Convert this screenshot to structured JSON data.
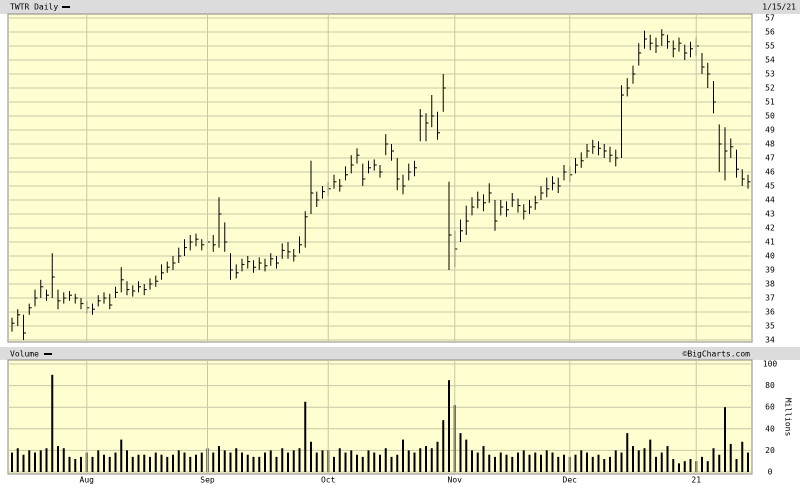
{
  "chart_data": [
    {
      "type": "ohlc",
      "title": "TWTR Daily",
      "date": "1/15/21",
      "color": "#000000",
      "grid": true,
      "ylim": [
        34,
        57
      ],
      "yticks": [
        34,
        35,
        36,
        37,
        38,
        39,
        40,
        41,
        42,
        43,
        44,
        45,
        46,
        47,
        48,
        49,
        50,
        51,
        52,
        53,
        54,
        55,
        56,
        57
      ],
      "high": [
        35.6,
        36.2,
        35.8,
        36.6,
        37.6,
        38.3,
        37.6,
        40.2,
        37.6,
        37.4,
        37.5,
        37.3,
        37.0,
        36.8,
        36.6,
        37.2,
        37.4,
        37.3,
        37.8,
        39.2,
        38.2,
        37.9,
        38.2,
        38.0,
        38.4,
        38.6,
        39.4,
        39.6,
        40.0,
        40.6,
        41.2,
        41.5,
        41.6,
        41.2,
        41.4,
        41.5,
        44.2,
        42.4,
        40.2,
        39.4,
        39.8,
        40.0,
        39.7,
        39.9,
        39.8,
        40.2,
        40.0,
        40.9,
        41.0,
        40.5,
        41.4,
        43.2,
        46.8,
        44.6,
        45.0,
        45.3,
        45.8,
        45.5,
        46.4,
        47.2,
        47.7,
        46.6,
        46.8,
        46.9,
        46.5,
        48.7,
        48.0,
        47.0,
        45.8,
        46.6,
        46.8,
        50.5,
        50.2,
        51.5,
        50.3,
        53.0,
        45.3,
        41.8,
        42.6,
        43.6,
        44.2,
        44.6,
        44.4,
        45.2,
        44.0,
        44.0,
        43.9,
        44.5,
        44.1,
        43.7,
        44.0,
        44.3,
        45.0,
        45.6,
        45.7,
        45.6,
        46.5,
        46.4,
        47.0,
        47.4,
        48.0,
        48.3,
        48.2,
        48.0,
        47.8,
        47.6,
        52.2,
        52.7,
        53.6,
        55.2,
        56.1,
        55.8,
        55.6,
        56.2,
        55.8,
        55.4,
        55.6,
        55.1,
        55.3,
        55.6,
        54.5,
        53.8,
        52.5,
        49.4,
        49.2,
        48.4,
        47.6,
        46.2,
        45.8
      ],
      "low": [
        34.6,
        35.0,
        34.0,
        35.8,
        36.4,
        37.0,
        36.8,
        37.0,
        36.2,
        36.6,
        36.8,
        36.6,
        36.2,
        35.9,
        35.8,
        36.4,
        36.6,
        36.2,
        37.0,
        37.4,
        37.2,
        37.1,
        37.4,
        37.2,
        37.6,
        37.8,
        38.3,
        38.8,
        39.0,
        39.5,
        40.0,
        40.4,
        40.7,
        40.4,
        40.5,
        40.3,
        40.6,
        40.3,
        38.3,
        38.4,
        38.9,
        39.1,
        38.8,
        39.0,
        38.9,
        39.3,
        39.1,
        39.8,
        39.8,
        39.6,
        40.2,
        40.6,
        43.0,
        43.5,
        44.1,
        44.3,
        44.8,
        44.6,
        45.4,
        45.9,
        46.6,
        45.0,
        45.9,
        46.1,
        45.6,
        47.2,
        46.8,
        44.7,
        44.4,
        45.4,
        45.7,
        48.2,
        48.2,
        49.2,
        48.3,
        50.3,
        39.0,
        39.2,
        41.0,
        41.5,
        42.9,
        43.4,
        43.2,
        43.8,
        41.8,
        42.9,
        42.8,
        43.5,
        43.1,
        42.6,
        43.0,
        43.3,
        44.0,
        44.2,
        44.7,
        44.5,
        45.4,
        45.3,
        45.9,
        46.3,
        47.0,
        47.3,
        47.2,
        47.0,
        46.7,
        46.4,
        47.0,
        51.4,
        52.3,
        53.6,
        54.8,
        54.7,
        54.5,
        55.0,
        54.8,
        54.2,
        54.6,
        54.0,
        54.2,
        54.3,
        53.0,
        52.0,
        50.2,
        46.0,
        45.4,
        47.0,
        45.6,
        45.0,
        44.8
      ],
      "close": [
        35.2,
        35.8,
        34.5,
        36.3,
        37.0,
        37.8,
        37.2,
        38.5,
        36.8,
        37.0,
        37.2,
        37.0,
        36.6,
        36.3,
        36.2,
        36.8,
        37.0,
        36.5,
        37.4,
        38.3,
        37.6,
        37.5,
        37.8,
        37.6,
        38.0,
        38.2,
        38.8,
        39.2,
        39.5,
        40.0,
        40.6,
        41.0,
        41.2,
        40.8,
        41.0,
        40.8,
        43.0,
        41.0,
        39.0,
        38.8,
        39.4,
        39.6,
        39.2,
        39.5,
        39.3,
        39.8,
        39.5,
        40.4,
        40.3,
        40.0,
        40.8,
        42.8,
        44.5,
        44.0,
        44.6,
        44.8,
        45.3,
        45.0,
        45.8,
        46.5,
        47.2,
        45.5,
        46.3,
        46.5,
        46.0,
        48.0,
        47.5,
        45.5,
        45.0,
        46.0,
        46.3,
        50.0,
        49.5,
        50.0,
        48.8,
        52.0,
        41.5,
        40.5,
        41.8,
        42.5,
        43.5,
        44.0,
        43.8,
        44.5,
        42.5,
        43.5,
        43.3,
        44.0,
        43.6,
        43.2,
        43.5,
        43.8,
        44.5,
        44.8,
        45.2,
        45.0,
        46.0,
        45.8,
        46.5,
        46.8,
        47.5,
        47.8,
        47.7,
        47.5,
        47.2,
        47.0,
        51.5,
        52.0,
        53.0,
        54.5,
        55.5,
        55.2,
        55.0,
        55.8,
        55.3,
        54.8,
        55.2,
        54.5,
        54.8,
        55.0,
        53.5,
        53.0,
        51.0,
        48.0,
        47.5,
        47.8,
        46.2,
        45.5,
        45.3
      ]
    },
    {
      "type": "bar",
      "title": "Volume",
      "credit": "©BigCharts.com",
      "ylabel": "Millions",
      "color": "#000000",
      "grid": true,
      "ylim": [
        0,
        100
      ],
      "yticks": [
        0,
        20,
        40,
        60,
        80,
        100
      ],
      "categories": [
        null,
        null,
        null,
        null,
        null,
        null,
        null,
        null,
        null,
        null,
        null,
        null,
        null,
        "Aug",
        null,
        null,
        null,
        null,
        null,
        null,
        null,
        null,
        null,
        null,
        null,
        null,
        null,
        null,
        null,
        null,
        null,
        null,
        null,
        null,
        "Sep",
        null,
        null,
        null,
        null,
        null,
        null,
        null,
        null,
        null,
        null,
        null,
        null,
        null,
        null,
        null,
        null,
        null,
        null,
        null,
        null,
        "Oct",
        null,
        null,
        null,
        null,
        null,
        null,
        null,
        null,
        null,
        null,
        null,
        null,
        null,
        null,
        null,
        null,
        null,
        null,
        null,
        null,
        null,
        "Nov",
        null,
        null,
        null,
        null,
        null,
        null,
        null,
        null,
        null,
        null,
        null,
        null,
        null,
        null,
        null,
        null,
        null,
        null,
        null,
        "Dec",
        null,
        null,
        null,
        null,
        null,
        null,
        null,
        null,
        null,
        null,
        null,
        null,
        null,
        null,
        null,
        null,
        null,
        null,
        null,
        null,
        null,
        "21",
        null,
        null,
        null,
        null,
        null,
        null,
        null,
        null,
        null
      ],
      "values": [
        18,
        22,
        16,
        20,
        18,
        20,
        22,
        90,
        24,
        22,
        14,
        12,
        14,
        18,
        14,
        20,
        16,
        14,
        18,
        30,
        20,
        14,
        16,
        16,
        14,
        18,
        16,
        14,
        16,
        20,
        18,
        14,
        16,
        18,
        22,
        18,
        24,
        20,
        18,
        22,
        18,
        16,
        14,
        14,
        18,
        20,
        14,
        22,
        18,
        20,
        22,
        65,
        28,
        18,
        20,
        20,
        14,
        22,
        18,
        20,
        16,
        14,
        20,
        18,
        16,
        22,
        14,
        16,
        30,
        20,
        18,
        22,
        24,
        22,
        28,
        48,
        85,
        62,
        36,
        30,
        20,
        18,
        24,
        16,
        14,
        18,
        16,
        14,
        18,
        20,
        16,
        18,
        16,
        20,
        18,
        14,
        16,
        14,
        16,
        20,
        18,
        14,
        16,
        12,
        14,
        20,
        18,
        36,
        24,
        20,
        22,
        30,
        14,
        18,
        24,
        12,
        8,
        10,
        12,
        10,
        14,
        10,
        22,
        16,
        60,
        26,
        12,
        28,
        18
      ]
    }
  ]
}
